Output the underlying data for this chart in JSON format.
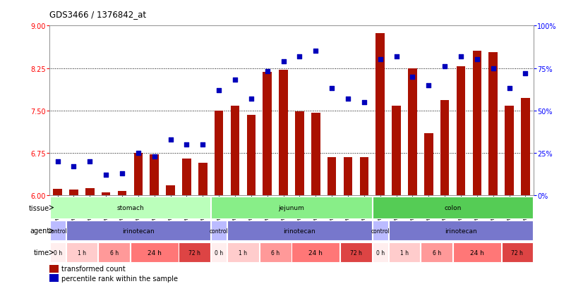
{
  "title": "GDS3466 / 1376842_at",
  "samples": [
    "GSM297524",
    "GSM297525",
    "GSM297526",
    "GSM297527",
    "GSM297528",
    "GSM297529",
    "GSM297530",
    "GSM297531",
    "GSM297532",
    "GSM297533",
    "GSM297534",
    "GSM297535",
    "GSM297536",
    "GSM297537",
    "GSM297538",
    "GSM297539",
    "GSM297540",
    "GSM297541",
    "GSM297542",
    "GSM297543",
    "GSM297544",
    "GSM297545",
    "GSM297546",
    "GSM297547",
    "GSM297548",
    "GSM297549",
    "GSM297550",
    "GSM297551",
    "GSM297552",
    "GSM297553"
  ],
  "bar_values": [
    6.12,
    6.1,
    6.13,
    6.05,
    6.08,
    6.75,
    6.73,
    6.18,
    6.65,
    6.58,
    7.5,
    7.58,
    7.42,
    8.18,
    8.22,
    7.48,
    7.46,
    6.67,
    6.68,
    6.68,
    8.87,
    7.58,
    8.25,
    7.1,
    7.68,
    8.28,
    8.55,
    8.53,
    7.58,
    7.72
  ],
  "scatter_values": [
    20,
    17,
    20,
    12,
    13,
    25,
    23,
    33,
    30,
    30,
    62,
    68,
    57,
    73,
    79,
    82,
    85,
    63,
    57,
    55,
    80,
    82,
    70,
    65,
    76,
    82,
    80,
    75,
    63,
    72
  ],
  "bar_color": "#aa1100",
  "scatter_color": "#0000bb",
  "ylim_left": [
    6,
    9
  ],
  "ylim_right": [
    0,
    100
  ],
  "yticks_left": [
    6,
    6.75,
    7.5,
    8.25,
    9
  ],
  "yticks_right": [
    0,
    25,
    50,
    75,
    100
  ],
  "hlines": [
    6.75,
    7.5,
    8.25
  ],
  "tissue_groups": [
    {
      "label": "stomach",
      "start": 0,
      "end": 9,
      "color": "#bbffbb"
    },
    {
      "label": "jejunum",
      "start": 10,
      "end": 19,
      "color": "#88ee88"
    },
    {
      "label": "colon",
      "start": 20,
      "end": 29,
      "color": "#55cc55"
    }
  ],
  "agent_groups": [
    {
      "label": "control",
      "start": 0,
      "end": 0,
      "color": "#bbbbff"
    },
    {
      "label": "irinotecan",
      "start": 1,
      "end": 9,
      "color": "#7777cc"
    },
    {
      "label": "control",
      "start": 10,
      "end": 10,
      "color": "#bbbbff"
    },
    {
      "label": "irinotecan",
      "start": 11,
      "end": 19,
      "color": "#7777cc"
    },
    {
      "label": "control",
      "start": 20,
      "end": 20,
      "color": "#bbbbff"
    },
    {
      "label": "irinotecan",
      "start": 21,
      "end": 29,
      "color": "#7777cc"
    }
  ],
  "time_groups": [
    {
      "label": "0 h",
      "start": 0,
      "end": 0,
      "color": "#ffeeee"
    },
    {
      "label": "1 h",
      "start": 1,
      "end": 2,
      "color": "#ffcccc"
    },
    {
      "label": "6 h",
      "start": 3,
      "end": 4,
      "color": "#ff9999"
    },
    {
      "label": "24 h",
      "start": 5,
      "end": 7,
      "color": "#ff7777"
    },
    {
      "label": "72 h",
      "start": 8,
      "end": 9,
      "color": "#dd4444"
    },
    {
      "label": "0 h",
      "start": 10,
      "end": 10,
      "color": "#ffeeee"
    },
    {
      "label": "1 h",
      "start": 11,
      "end": 12,
      "color": "#ffcccc"
    },
    {
      "label": "6 h",
      "start": 13,
      "end": 14,
      "color": "#ff9999"
    },
    {
      "label": "24 h",
      "start": 15,
      "end": 17,
      "color": "#ff7777"
    },
    {
      "label": "72 h",
      "start": 18,
      "end": 19,
      "color": "#dd4444"
    },
    {
      "label": "0 h",
      "start": 20,
      "end": 20,
      "color": "#ffeeee"
    },
    {
      "label": "1 h",
      "start": 21,
      "end": 22,
      "color": "#ffcccc"
    },
    {
      "label": "6 h",
      "start": 23,
      "end": 24,
      "color": "#ff9999"
    },
    {
      "label": "24 h",
      "start": 25,
      "end": 27,
      "color": "#ff7777"
    },
    {
      "label": "72 h",
      "start": 28,
      "end": 29,
      "color": "#dd4444"
    }
  ],
  "background_color": "#ffffff"
}
